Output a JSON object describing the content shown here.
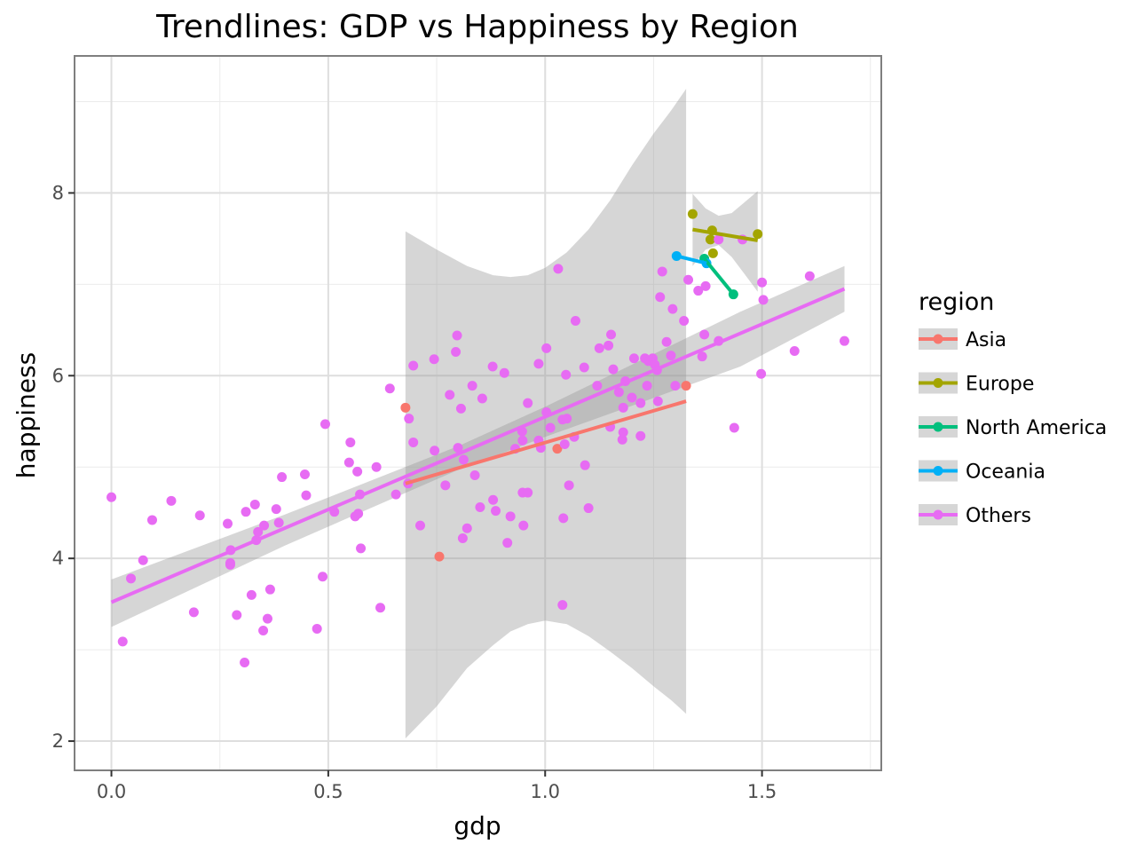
{
  "chart_data": {
    "type": "scatter",
    "title": "Trendlines: GDP vs Happiness by Region",
    "xlabel": "gdp",
    "ylabel": "happiness",
    "xlim": [
      -0.085,
      1.775
    ],
    "ylim": [
      1.68,
      9.5
    ],
    "x_ticks": [
      0.0,
      0.5,
      1.0,
      1.5
    ],
    "x_tick_labels": [
      "0.0",
      "0.5",
      "1.0",
      "1.5"
    ],
    "y_ticks": [
      2,
      4,
      6,
      8
    ],
    "y_tick_labels": [
      "2",
      "4",
      "6",
      "8"
    ],
    "grid": true,
    "legend": {
      "title": "region",
      "position": "right"
    },
    "colors": {
      "Asia": "#F8766D",
      "Europe": "#A3A500",
      "North America": "#00BF7D",
      "Oceania": "#00B0F6",
      "Others": "#E76BF3",
      "ribbon": "#999999"
    },
    "series": [
      {
        "name": "Asia",
        "color": "#F8766D",
        "points": [
          [
            0.678,
            5.65
          ],
          [
            0.756,
            4.02
          ],
          [
            1.028,
            5.2
          ],
          [
            1.325,
            5.89
          ]
        ],
        "trend": [
          [
            0.678,
            4.82
          ],
          [
            1.325,
            5.72
          ]
        ],
        "ribbon": [
          [
            0.678,
            7.58,
            2.03
          ],
          [
            0.75,
            7.38,
            2.38
          ],
          [
            0.82,
            7.2,
            2.8
          ],
          [
            0.88,
            7.1,
            3.05
          ],
          [
            0.92,
            7.08,
            3.2
          ],
          [
            0.96,
            7.1,
            3.28
          ],
          [
            1.0,
            7.18,
            3.32
          ],
          [
            1.05,
            7.35,
            3.28
          ],
          [
            1.1,
            7.6,
            3.15
          ],
          [
            1.15,
            7.92,
            2.98
          ],
          [
            1.2,
            8.3,
            2.8
          ],
          [
            1.25,
            8.65,
            2.6
          ],
          [
            1.29,
            8.9,
            2.45
          ],
          [
            1.325,
            9.14,
            2.3
          ]
        ]
      },
      {
        "name": "Europe",
        "color": "#A3A500",
        "points": [
          [
            1.34,
            7.77
          ],
          [
            1.385,
            7.59
          ],
          [
            1.381,
            7.49
          ],
          [
            1.387,
            7.34
          ],
          [
            1.49,
            7.55
          ]
        ],
        "trend": [
          [
            1.34,
            7.6
          ],
          [
            1.49,
            7.48
          ]
        ],
        "ribbon": [
          [
            1.34,
            7.99,
            7.2
          ],
          [
            1.37,
            7.83,
            7.38
          ],
          [
            1.4,
            7.75,
            7.43
          ],
          [
            1.43,
            7.78,
            7.3
          ],
          [
            1.46,
            7.9,
            7.11
          ],
          [
            1.49,
            8.02,
            6.92
          ]
        ]
      },
      {
        "name": "North America",
        "color": "#00BF7D",
        "points": [
          [
            1.367,
            7.28
          ],
          [
            1.434,
            6.89
          ]
        ],
        "trend": [
          [
            1.367,
            7.28
          ],
          [
            1.434,
            6.89
          ]
        ]
      },
      {
        "name": "Oceania",
        "color": "#00B0F6",
        "points": [
          [
            1.303,
            7.31
          ],
          [
            1.372,
            7.23
          ]
        ],
        "trend": [
          [
            1.303,
            7.31
          ],
          [
            1.372,
            7.23
          ]
        ]
      },
      {
        "name": "Others",
        "color": "#E76BF3",
        "points": [
          [
            0.0,
            4.67
          ],
          [
            0.026,
            3.09
          ],
          [
            0.045,
            3.78
          ],
          [
            0.073,
            3.98
          ],
          [
            0.094,
            4.42
          ],
          [
            0.138,
            4.63
          ],
          [
            0.19,
            3.41
          ],
          [
            0.204,
            4.47
          ],
          [
            0.268,
            4.38
          ],
          [
            0.275,
            4.09
          ],
          [
            0.274,
            3.95
          ],
          [
            0.274,
            3.93
          ],
          [
            0.289,
            3.38
          ],
          [
            0.307,
            2.86
          ],
          [
            0.31,
            4.51
          ],
          [
            0.323,
            3.6
          ],
          [
            0.331,
            4.59
          ],
          [
            0.334,
            4.2
          ],
          [
            0.338,
            4.29
          ],
          [
            0.35,
            3.21
          ],
          [
            0.352,
            4.36
          ],
          [
            0.36,
            3.34
          ],
          [
            0.366,
            3.66
          ],
          [
            0.38,
            4.54
          ],
          [
            0.386,
            4.39
          ],
          [
            0.393,
            4.89
          ],
          [
            0.446,
            4.92
          ],
          [
            0.449,
            4.69
          ],
          [
            0.474,
            3.23
          ],
          [
            0.487,
            3.8
          ],
          [
            0.493,
            5.47
          ],
          [
            0.514,
            4.51
          ],
          [
            0.548,
            5.05
          ],
          [
            0.551,
            5.27
          ],
          [
            0.562,
            4.46
          ],
          [
            0.567,
            4.95
          ],
          [
            0.569,
            4.49
          ],
          [
            0.573,
            4.7
          ],
          [
            0.575,
            4.11
          ],
          [
            0.611,
            5.0
          ],
          [
            0.62,
            3.46
          ],
          [
            0.642,
            5.86
          ],
          [
            0.656,
            4.7
          ],
          [
            0.684,
            4.82
          ],
          [
            0.686,
            5.53
          ],
          [
            0.696,
            6.11
          ],
          [
            0.696,
            5.27
          ],
          [
            0.712,
            4.36
          ],
          [
            0.744,
            6.18
          ],
          [
            0.745,
            5.18
          ],
          [
            0.77,
            4.8
          ],
          [
            0.78,
            5.79
          ],
          [
            0.794,
            6.26
          ],
          [
            0.797,
            6.44
          ],
          [
            0.799,
            5.21
          ],
          [
            0.806,
            5.64
          ],
          [
            0.81,
            4.22
          ],
          [
            0.812,
            5.08
          ],
          [
            0.82,
            4.33
          ],
          [
            0.832,
            5.89
          ],
          [
            0.838,
            4.91
          ],
          [
            0.85,
            4.56
          ],
          [
            0.855,
            5.75
          ],
          [
            0.879,
            6.1
          ],
          [
            0.88,
            4.64
          ],
          [
            0.886,
            4.52
          ],
          [
            0.906,
            6.03
          ],
          [
            0.913,
            4.17
          ],
          [
            0.92,
            4.46
          ],
          [
            0.931,
            5.2
          ],
          [
            0.947,
            5.39
          ],
          [
            0.948,
            4.72
          ],
          [
            0.948,
            5.29
          ],
          [
            0.95,
            4.36
          ],
          [
            0.96,
            4.72
          ],
          [
            0.96,
            5.7
          ],
          [
            0.985,
            5.29
          ],
          [
            0.985,
            6.13
          ],
          [
            0.99,
            5.21
          ],
          [
            1.003,
            6.3
          ],
          [
            1.003,
            5.6
          ],
          [
            1.012,
            5.43
          ],
          [
            1.03,
            7.17
          ],
          [
            1.04,
            5.52
          ],
          [
            1.042,
            4.44
          ],
          [
            1.04,
            3.49
          ],
          [
            1.045,
            5.25
          ],
          [
            1.048,
            6.01
          ],
          [
            1.05,
            5.53
          ],
          [
            1.055,
            4.8
          ],
          [
            1.067,
            5.33
          ],
          [
            1.07,
            6.6
          ],
          [
            1.09,
            6.09
          ],
          [
            1.092,
            5.02
          ],
          [
            1.1,
            4.55
          ],
          [
            1.12,
            5.89
          ],
          [
            1.125,
            6.3
          ],
          [
            1.146,
            6.33
          ],
          [
            1.15,
            5.44
          ],
          [
            1.152,
            6.45
          ],
          [
            1.157,
            6.07
          ],
          [
            1.17,
            5.82
          ],
          [
            1.18,
            5.65
          ],
          [
            1.178,
            5.3
          ],
          [
            1.18,
            5.38
          ],
          [
            1.185,
            5.94
          ],
          [
            1.2,
            5.76
          ],
          [
            1.205,
            6.19
          ],
          [
            1.22,
            5.34
          ],
          [
            1.22,
            5.7
          ],
          [
            1.23,
            6.19
          ],
          [
            1.235,
            5.89
          ],
          [
            1.238,
            6.16
          ],
          [
            1.248,
            6.19
          ],
          [
            1.253,
            6.12
          ],
          [
            1.258,
            6.06
          ],
          [
            1.26,
            5.72
          ],
          [
            1.265,
            6.86
          ],
          [
            1.27,
            7.14
          ],
          [
            1.28,
            6.37
          ],
          [
            1.29,
            6.22
          ],
          [
            1.294,
            6.73
          ],
          [
            1.3,
            5.89
          ],
          [
            1.32,
            6.6
          ],
          [
            1.33,
            7.05
          ],
          [
            1.353,
            6.93
          ],
          [
            1.362,
            6.21
          ],
          [
            1.367,
            6.45
          ],
          [
            1.37,
            6.98
          ],
          [
            1.4,
            7.49
          ],
          [
            1.4,
            6.38
          ],
          [
            1.436,
            5.43
          ],
          [
            1.455,
            7.49
          ],
          [
            1.498,
            6.02
          ],
          [
            1.5,
            7.02
          ],
          [
            1.503,
            6.83
          ],
          [
            1.575,
            6.27
          ],
          [
            1.61,
            7.09
          ],
          [
            1.69,
            6.38
          ]
        ],
        "trend": [
          [
            0.0,
            3.52
          ],
          [
            1.69,
            6.95
          ]
        ],
        "ribbon": [
          [
            0.0,
            3.77,
            3.25
          ],
          [
            0.4,
            4.48,
            4.14
          ],
          [
            0.8,
            5.23,
            4.97
          ],
          [
            1.0,
            5.66,
            5.33
          ],
          [
            1.2,
            6.12,
            5.67
          ],
          [
            1.45,
            6.7,
            6.1
          ],
          [
            1.69,
            7.2,
            6.7
          ]
        ]
      }
    ]
  }
}
